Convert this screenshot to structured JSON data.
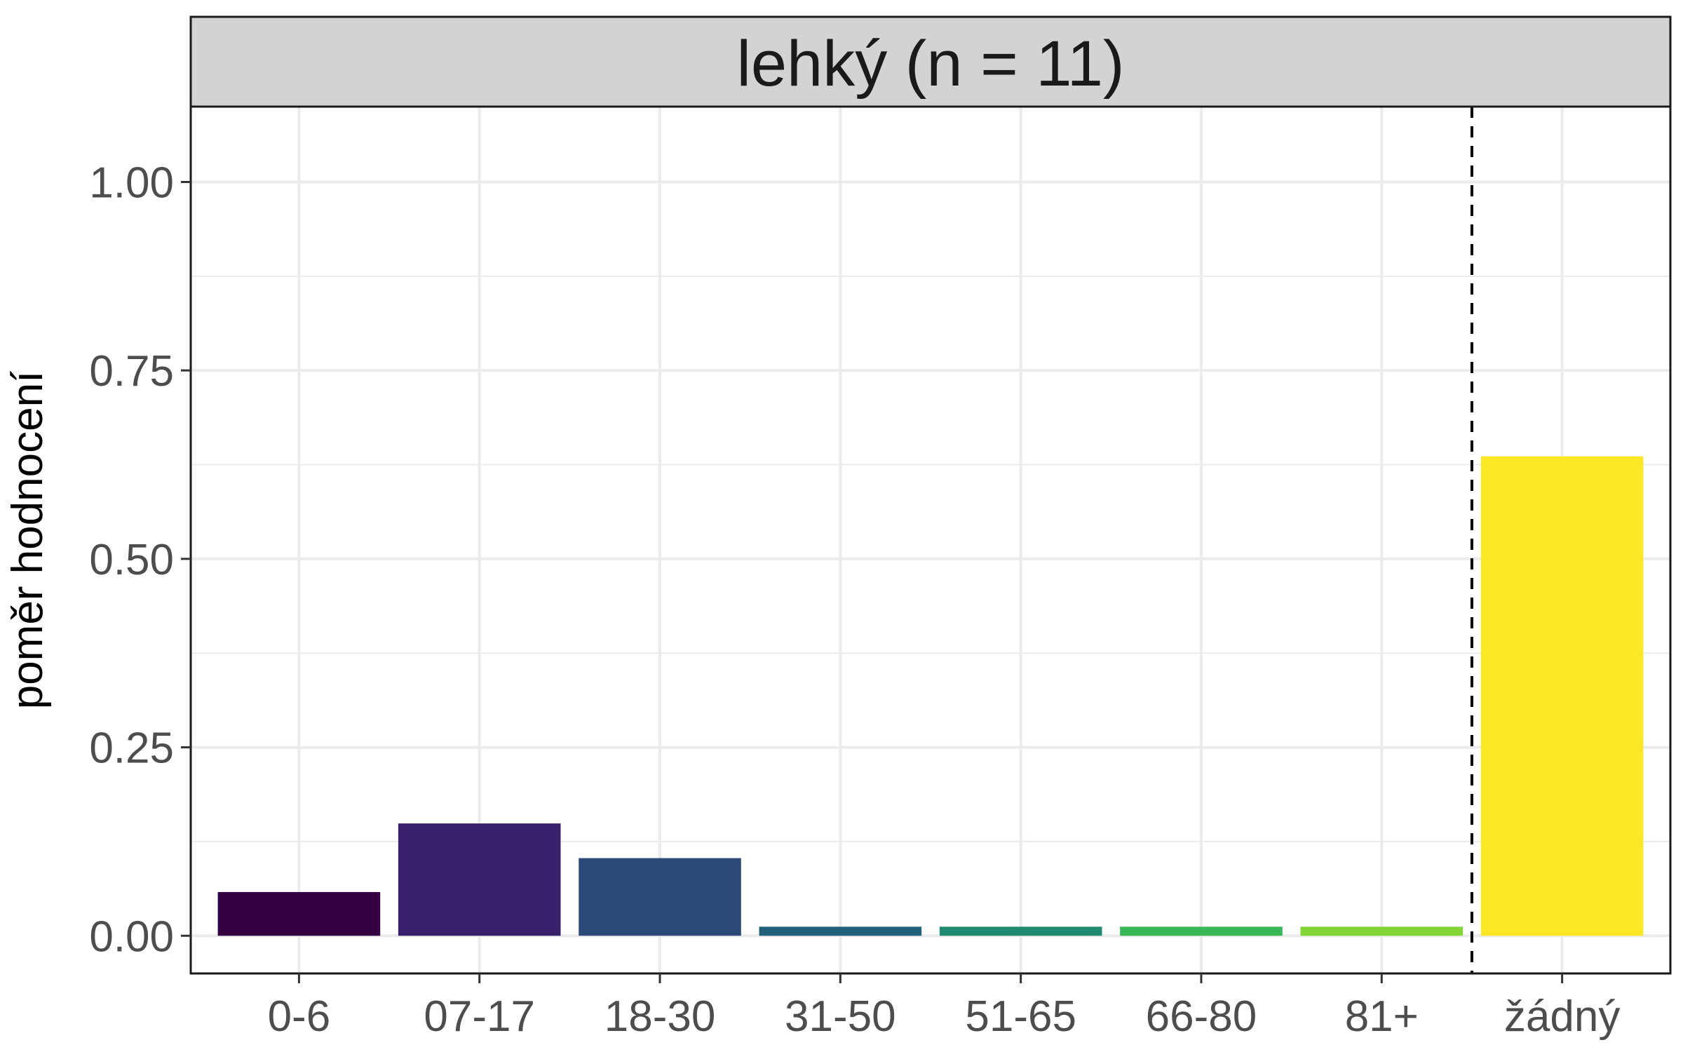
{
  "chart_data": {
    "type": "bar",
    "facet_title": "lehký (n = 11)",
    "xlabel": "",
    "ylabel": "poměr hodnocení",
    "categories": [
      "0-6",
      "07-17",
      "18-30",
      "31-50",
      "51-65",
      "66-80",
      "81+",
      "žádný"
    ],
    "values": [
      0.058,
      0.149,
      0.103,
      0.012,
      0.012,
      0.012,
      0.012,
      0.636
    ],
    "colors": [
      "#340042",
      "#39206A",
      "#2C4A79",
      "#236079",
      "#1F8A70",
      "#38B855",
      "#82D534",
      "#FDE725"
    ],
    "ylim": [
      -0.05,
      1.1
    ],
    "yticks": [
      0.0,
      0.25,
      0.5,
      0.75,
      1.0
    ],
    "ytick_labels": [
      "0.00",
      "0.25",
      "0.50",
      "0.75",
      "1.00"
    ],
    "grid": true,
    "reference_line": {
      "style": "dashed",
      "position": "between 81+ and žádný"
    }
  }
}
